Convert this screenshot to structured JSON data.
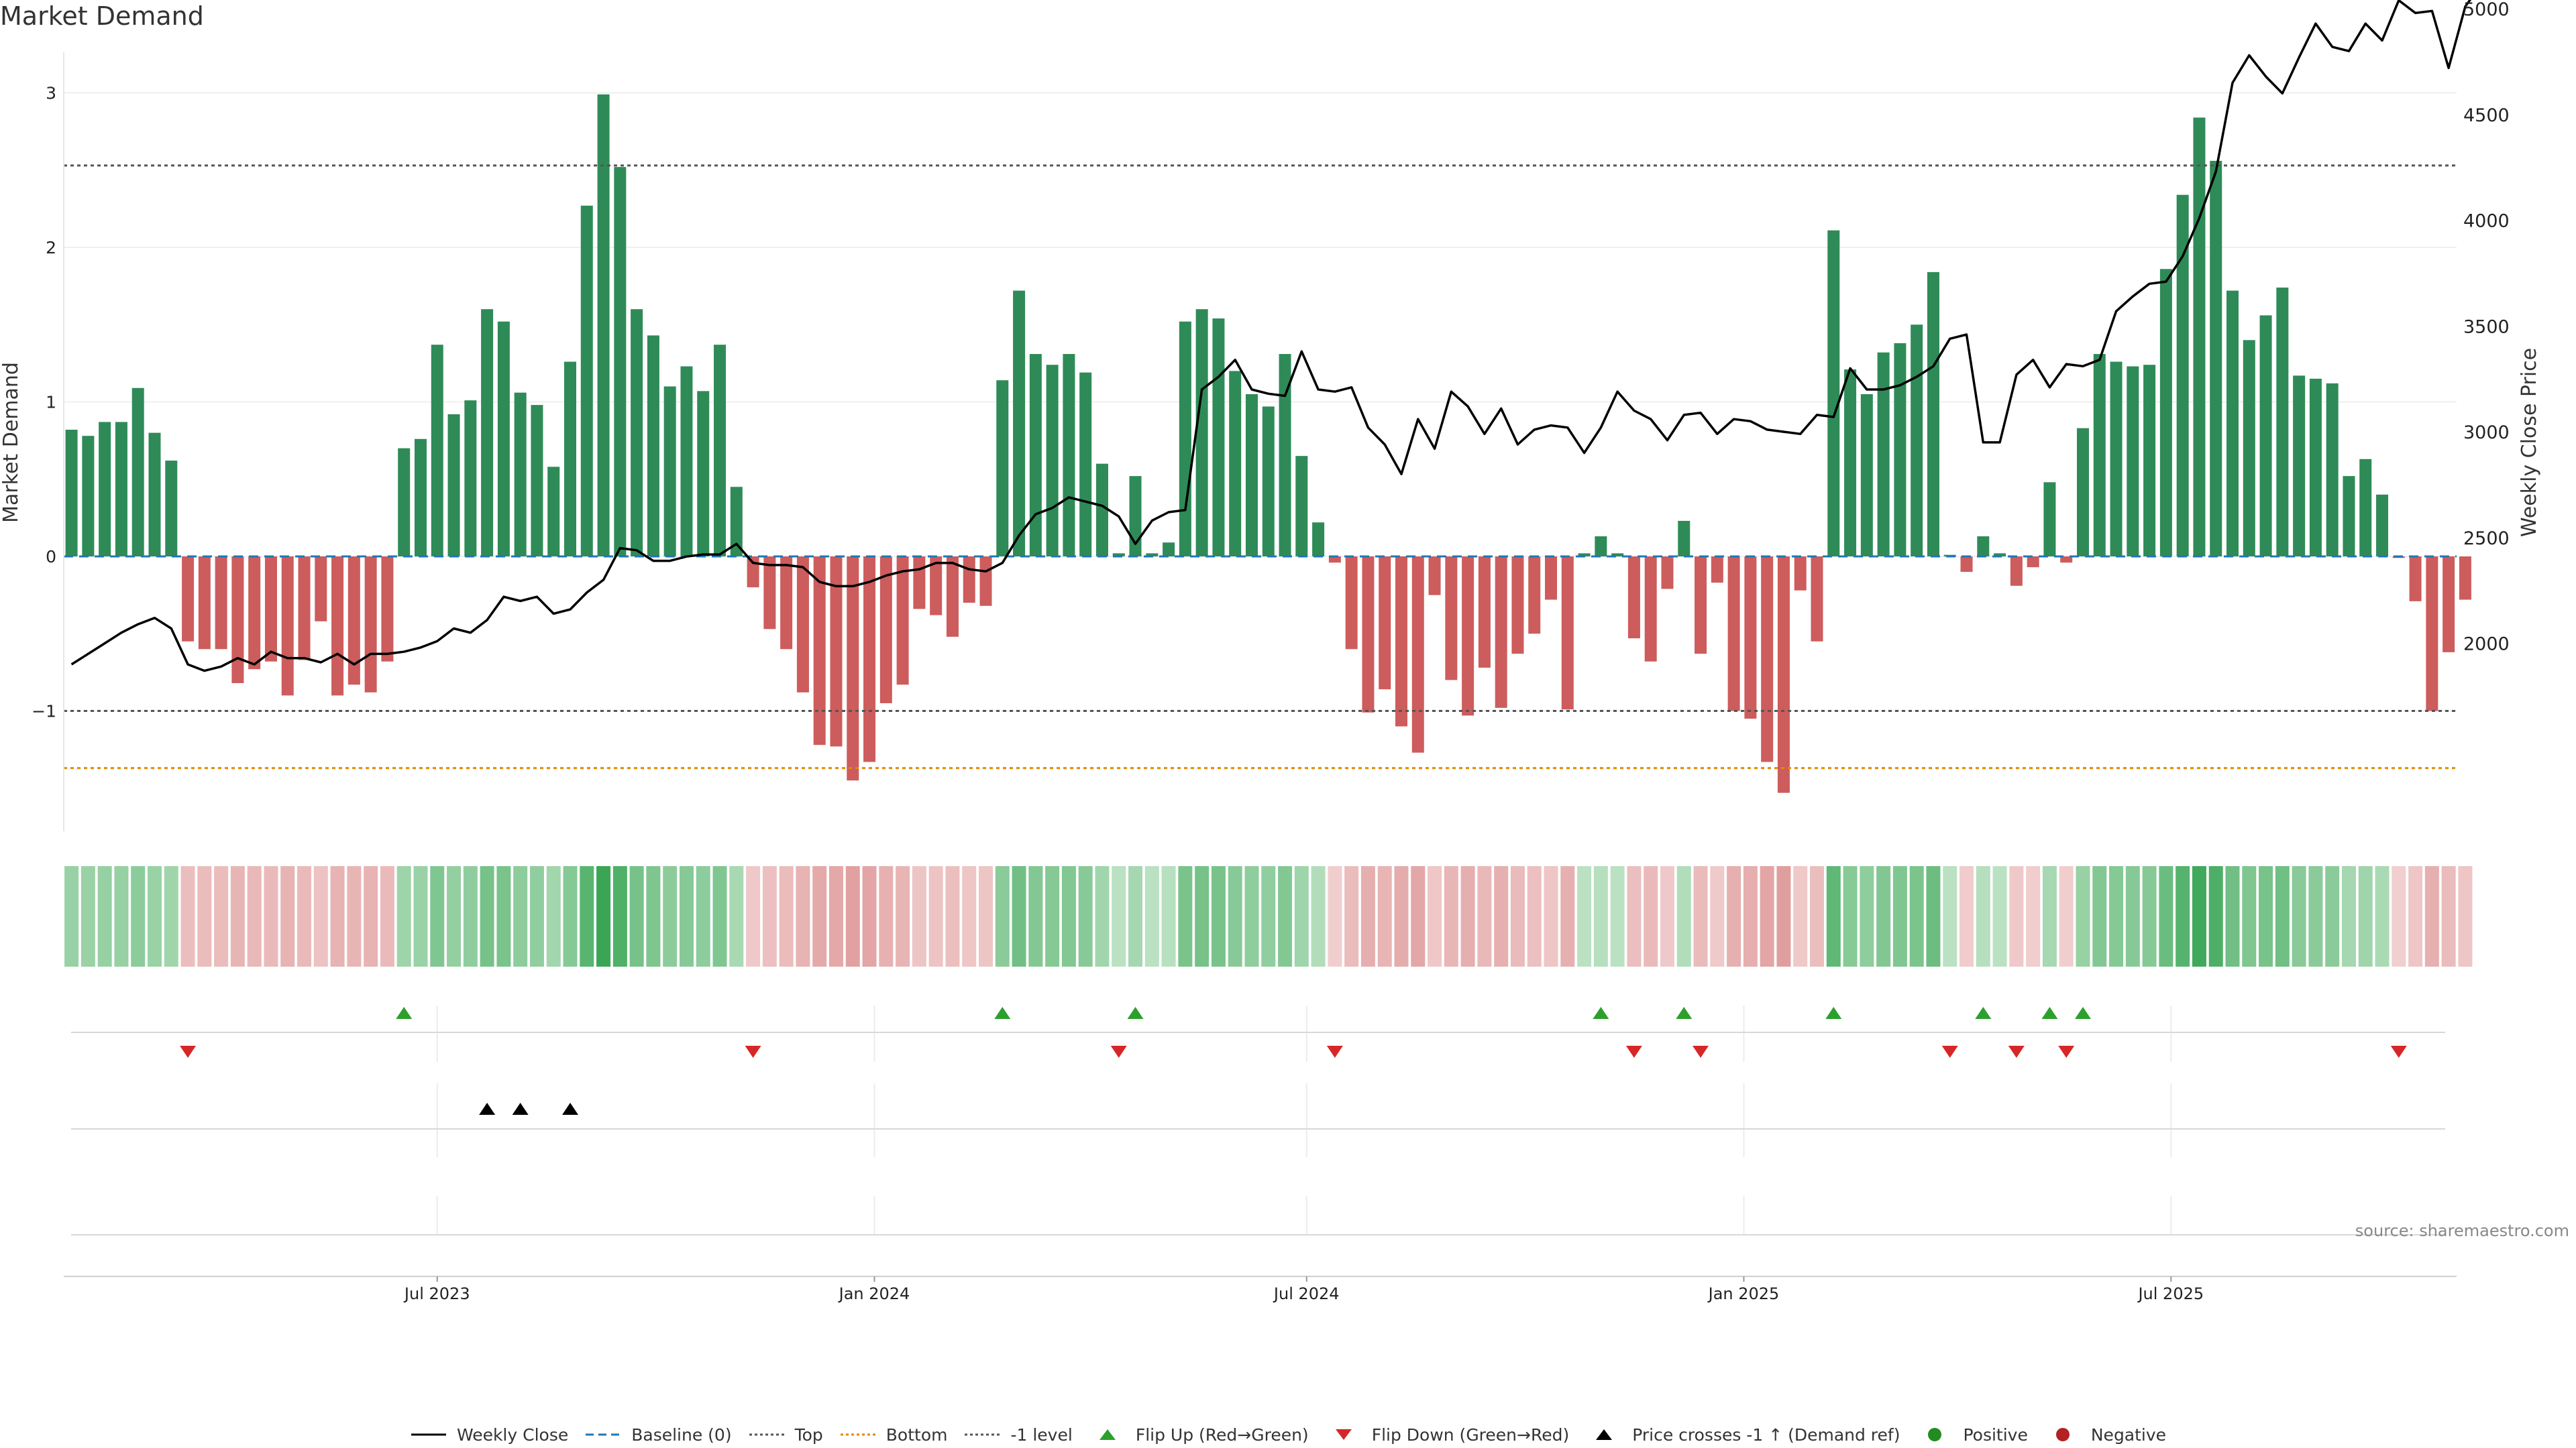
{
  "title": "Market Demand",
  "source": "source: sharemaestro.com",
  "legend": [
    {
      "label": "Weekly Close",
      "kind": "line",
      "color": "#000000",
      "dash": "solid"
    },
    {
      "label": "Baseline (0)",
      "kind": "line",
      "color": "#1f77b4",
      "dash": "dashed"
    },
    {
      "label": "Top",
      "kind": "line",
      "color": "#555555",
      "dash": "dotted"
    },
    {
      "label": "Bottom",
      "kind": "line",
      "color": "#e08a00",
      "dash": "dotted"
    },
    {
      "label": "-1 level",
      "kind": "line",
      "color": "#555555",
      "dash": "dotted"
    },
    {
      "label": "Flip Up (Red→Green)",
      "kind": "tri-up",
      "color": "#2ca02c"
    },
    {
      "label": "Flip Down (Green→Red)",
      "kind": "tri-down",
      "color": "#d62728"
    },
    {
      "label": "Price crosses -1 ↑ (Demand ref)",
      "kind": "tri-up",
      "color": "#000000"
    },
    {
      "label": "Positive",
      "kind": "dot",
      "color": "#228b22"
    },
    {
      "label": "Negative",
      "kind": "dot",
      "color": "#b22222"
    }
  ],
  "chart_data": {
    "type": "bar",
    "title": "Market Demand",
    "ylabel": "Market Demand",
    "y2label": "Weekly Close Price",
    "ylim": [
      -1.8,
      3.0
    ],
    "y2lim": [
      1700,
      5200
    ],
    "yticks": [
      3,
      2,
      1,
      0,
      -1
    ],
    "ytick_labels": [
      "3",
      "2",
      "1",
      "0",
      "−1"
    ],
    "y2ticks": [
      5000,
      4500,
      4000,
      3500,
      3000,
      2500,
      2000
    ],
    "date_ticks": [
      "Jul 2023",
      "Jan 2024",
      "Jul 2024",
      "Jan 2025",
      "Jul 2025"
    ],
    "tick_week_index": [
      22,
      48.3,
      74.3,
      100.6,
      126.3
    ],
    "levels": {
      "top": 2.53,
      "bottom": -1.37,
      "minus_one": -1,
      "baseline": 0
    },
    "colors": {
      "positive": "#2e8b57",
      "negative": "#cd5c5c",
      "price": "#000000",
      "baseline": "#1f77b4",
      "top": "#555555",
      "bottom": "#e08a00",
      "flip_up": "#2ca02c",
      "flip_down": "#d62728"
    },
    "demand": [
      0.82,
      0.78,
      0.87,
      0.87,
      1.09,
      0.8,
      0.62,
      -0.55,
      -0.6,
      -0.6,
      -0.82,
      -0.73,
      -0.68,
      -0.9,
      -0.67,
      -0.42,
      -0.9,
      -0.83,
      -0.88,
      -0.68,
      0.7,
      0.76,
      1.37,
      0.92,
      1.01,
      1.6,
      1.52,
      1.06,
      0.98,
      0.58,
      1.26,
      2.27,
      2.99,
      2.52,
      1.6,
      1.43,
      1.1,
      1.23,
      1.07,
      1.37,
      0.45,
      -0.2,
      -0.47,
      -0.6,
      -0.88,
      -1.22,
      -1.23,
      -1.45,
      -1.33,
      -0.95,
      -0.83,
      -0.34,
      -0.38,
      -0.52,
      -0.3,
      -0.32,
      1.14,
      1.72,
      1.31,
      1.24,
      1.31,
      1.19,
      0.6,
      0.02,
      0.52,
      0.02,
      0.09,
      1.52,
      1.6,
      1.54,
      1.2,
      1.05,
      0.97,
      1.31,
      0.65,
      0.22,
      -0.04,
      -0.6,
      -1.01,
      -0.86,
      -1.1,
      -1.27,
      -0.25,
      -0.8,
      -1.03,
      -0.72,
      -0.98,
      -0.63,
      -0.5,
      -0.28,
      -0.99,
      0.02,
      0.13,
      0.02,
      -0.53,
      -0.68,
      -0.21,
      0.23,
      -0.63,
      -0.17,
      -1.0,
      -1.05,
      -1.33,
      -1.53,
      -0.22,
      -0.55,
      2.11,
      1.21,
      1.05,
      1.32,
      1.38,
      1.5,
      1.84,
      0.01,
      -0.1,
      0.13,
      0.02,
      -0.19,
      -0.07,
      0.48,
      -0.04,
      0.83,
      1.31,
      1.26,
      1.23,
      1.24,
      1.86,
      2.34,
      2.84,
      2.56,
      1.72,
      1.4,
      1.56,
      1.74,
      1.17,
      1.15,
      1.12,
      0.52,
      0.63,
      0.4,
      -0.01,
      -0.29,
      -1.0,
      -0.62,
      -0.28
    ],
    "price": [
      1900,
      1950,
      2000,
      2050,
      2090,
      2120,
      2070,
      1900,
      1870,
      1890,
      1930,
      1900,
      1960,
      1930,
      1930,
      1910,
      1950,
      1900,
      1950,
      1950,
      1960,
      1980,
      2010,
      2070,
      2050,
      2110,
      2220,
      2200,
      2220,
      2140,
      2160,
      2240,
      2300,
      2450,
      2440,
      2390,
      2390,
      2410,
      2420,
      2420,
      2470,
      2380,
      2370,
      2370,
      2360,
      2290,
      2270,
      2270,
      2290,
      2320,
      2340,
      2350,
      2380,
      2380,
      2350,
      2340,
      2380,
      2510,
      2610,
      2640,
      2690,
      2670,
      2650,
      2600,
      2470,
      2580,
      2620,
      2630,
      3200,
      3260,
      3340,
      3200,
      3180,
      3170,
      3380,
      3200,
      3190,
      3210,
      3020,
      2940,
      2800,
      3060,
      2920,
      3190,
      3120,
      2990,
      3110,
      2940,
      3010,
      3030,
      3020,
      2900,
      3020,
      3190,
      3100,
      3060,
      2960,
      3080,
      3090,
      2990,
      3060,
      3050,
      3010,
      3000,
      2990,
      3080,
      3070,
      3300,
      3200,
      3200,
      3220,
      3260,
      3310,
      3440,
      3460,
      2950,
      2950,
      3270,
      3340,
      3210,
      3320,
      3310,
      3340,
      3570,
      3640,
      3700,
      3710,
      3830,
      4010,
      4230,
      4650,
      4780,
      4680,
      4600,
      4770,
      4930,
      4820,
      4800,
      4930,
      4850,
      5040,
      4980,
      4990,
      4720,
      5010,
      5120
    ],
    "flip_up_weeks": [
      20,
      56,
      64,
      92,
      97,
      106,
      115,
      119,
      121
    ],
    "flip_down_weeks": [
      7,
      41,
      63,
      76,
      94,
      98,
      113,
      117,
      120,
      140
    ],
    "price_cross_weeks": [
      25,
      27,
      30
    ]
  }
}
